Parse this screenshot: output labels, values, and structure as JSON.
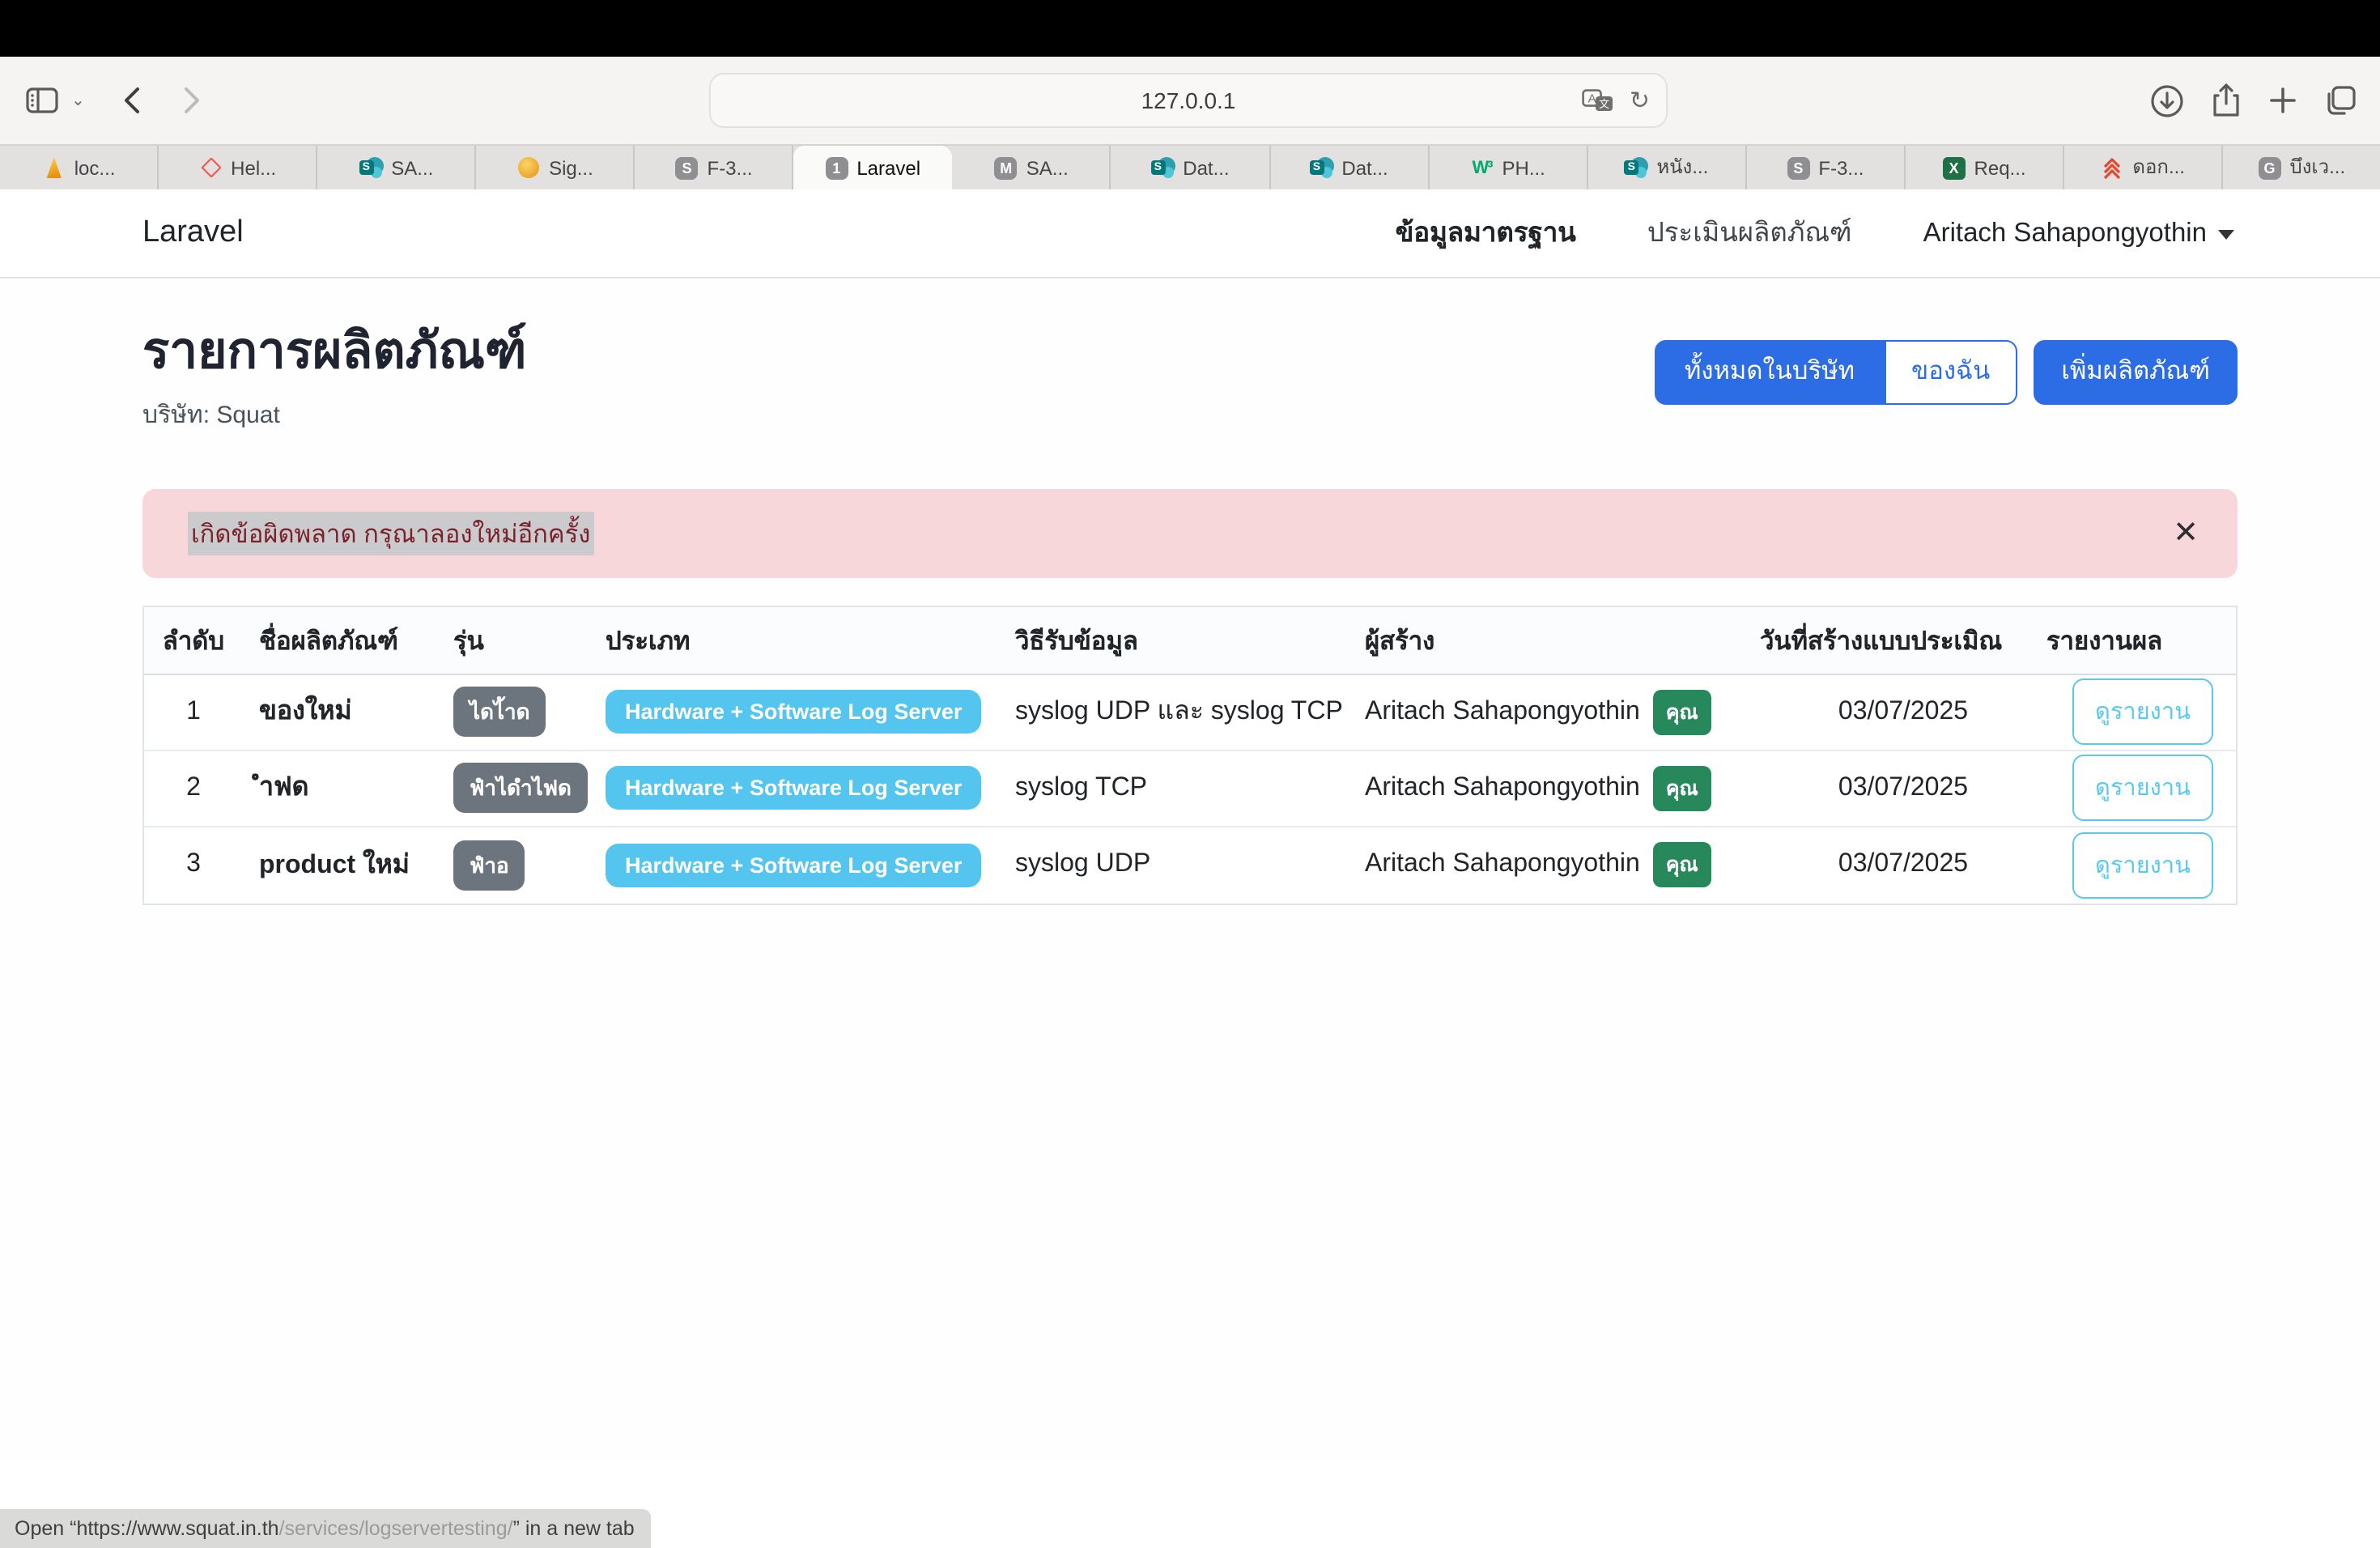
{
  "browser": {
    "url": "127.0.0.1",
    "toolbar_icons": [
      "sidebar-icon",
      "chevron-down-icon",
      "back-icon",
      "forward-icon",
      "translate-icon",
      "reload-icon",
      "download-icon",
      "share-icon",
      "new-tab-icon",
      "tab-overview-icon"
    ],
    "tabs": [
      {
        "label": "loc...",
        "icon": "phpmyadmin",
        "active": false
      },
      {
        "label": "Hel...",
        "icon": "laravel",
        "active": false
      },
      {
        "label": "SA...",
        "icon": "sharepoint",
        "active": false
      },
      {
        "label": "Sig...",
        "icon": "orange-orb",
        "active": false
      },
      {
        "label": "F-3...",
        "icon": "gray-S",
        "active": false
      },
      {
        "label": "Laravel",
        "icon": "gray-1",
        "active": true
      },
      {
        "label": "SA...",
        "icon": "gray-M",
        "active": false
      },
      {
        "label": "Dat...",
        "icon": "sharepoint",
        "active": false
      },
      {
        "label": "Dat...",
        "icon": "sharepoint",
        "active": false
      },
      {
        "label": "PH...",
        "icon": "w3schools",
        "active": false
      },
      {
        "label": "หนัง...",
        "icon": "sharepoint",
        "active": false
      },
      {
        "label": "F-3...",
        "icon": "gray-S",
        "active": false
      },
      {
        "label": "Req...",
        "icon": "excel",
        "active": false
      },
      {
        "label": "ดอก...",
        "icon": "red-chevrons",
        "active": false
      },
      {
        "label": "บึงเว...",
        "icon": "gray-G",
        "active": false
      }
    ],
    "status_bar": {
      "prefix": "Open “",
      "link_host": "https://www.squat.in.th",
      "link_path": "/services/logservertesting/",
      "suffix": "” in a new tab"
    }
  },
  "navbar": {
    "brand": "Laravel",
    "link_standard_data": "ข้อมูลมาตรฐาน",
    "link_evaluate": "ประเมินผลิตภัณฑ์",
    "user": "Aritach Sahapongyothin"
  },
  "page": {
    "title": "รายการผลิตภัณฑ์",
    "company": "บริษัท: Squat",
    "buttons": {
      "all_in_company": "ทั้งหมดในบริษัท",
      "mine": "ของฉัน",
      "add_product": "เพิ่มผลิตภัณฑ์"
    },
    "alert": {
      "message": "เกิดข้อผิดพลาด กรุณาลองใหม่อีกครั้ง",
      "close": "✕"
    },
    "table": {
      "headers": [
        "ลำดับ",
        "ชื่อผลิตภัณฑ์",
        "รุ่น",
        "ประเภท",
        "วิธีรับข้อมูล",
        "ผู้สร้าง",
        "วันที่สร้างแบบประเมิณ",
        "รายงานผล"
      ],
      "rows": [
        {
          "no": "1",
          "name": "ของใหม่",
          "model": "ไดไ้าด",
          "type": "Hardware + Software Log Server",
          "method": "syslog UDP และ syslog TCP",
          "creator": "Aritach Sahapongyothin",
          "creator_badge": "คุณ",
          "date": "03/07/2025",
          "report": "ดูรายงาน"
        },
        {
          "no": "2",
          "name": "ำฟด",
          "model": "ฟำไดำไฟด",
          "type": "Hardware + Software Log Server",
          "method": "syslog TCP",
          "creator": "Aritach Sahapongyothin",
          "creator_badge": "คุณ",
          "date": "03/07/2025",
          "report": "ดูรายงาน"
        },
        {
          "no": "3",
          "name": "product ใหม่",
          "model": "ฟำอ",
          "type": "Hardware + Software Log Server",
          "method": "syslog UDP",
          "creator": "Aritach Sahapongyothin",
          "creator_badge": "คุณ",
          "date": "03/07/2025",
          "report": "ดูรายงาน"
        }
      ]
    }
  },
  "colors": {
    "primary_blue": "#2c6ce4",
    "badge_gray": "#6c757d",
    "badge_cyan": "#54c5ee",
    "badge_green": "#27895b",
    "alert_bg": "#f8d7da",
    "alert_text": "#7a212c"
  }
}
